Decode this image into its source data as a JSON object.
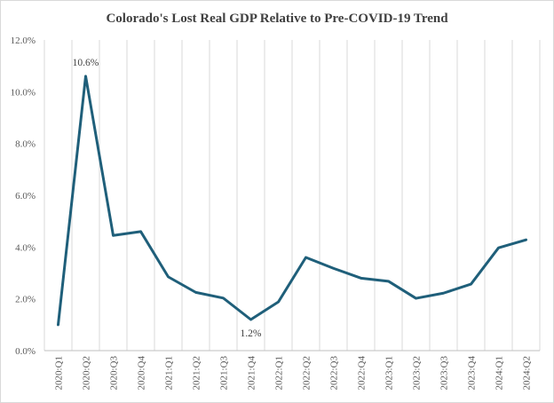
{
  "chart_data": {
    "type": "line",
    "title": "Colorado's  Lost Real GDP Relative to Pre-COVID-19  Trend",
    "xlabel": "",
    "ylabel": "",
    "categories": [
      "2020:Q1",
      "2020:Q2",
      "2020:Q3",
      "2020:Q4",
      "2021:Q1",
      "2021:Q2",
      "2021:Q3",
      "2021:Q4",
      "2022:Q1",
      "2022:Q2",
      "2022:Q3",
      "2022:Q4",
      "2023:Q1",
      "2023:Q2",
      "2023:Q3",
      "2023:Q4",
      "2024:Q1",
      "2024:Q2"
    ],
    "series": [
      {
        "values": [
          1.0,
          10.6,
          4.45,
          4.6,
          2.85,
          2.25,
          2.03,
          1.2,
          1.88,
          3.6,
          3.18,
          2.8,
          2.68,
          2.02,
          2.22,
          2.57,
          3.97,
          4.28
        ]
      }
    ],
    "ylim": [
      0,
      12
    ],
    "yticks": [
      "0.0%",
      "2.0%",
      "4.0%",
      "6.0%",
      "8.0%",
      "10.0%",
      "12.0%"
    ],
    "grid": {
      "vertical": true,
      "horizontal": false
    },
    "line_color": "#1f5f7a",
    "annotations": [
      {
        "index": 1,
        "label": "10.6%",
        "position": "above"
      },
      {
        "index": 7,
        "label": "1.2%",
        "position": "below"
      }
    ]
  }
}
